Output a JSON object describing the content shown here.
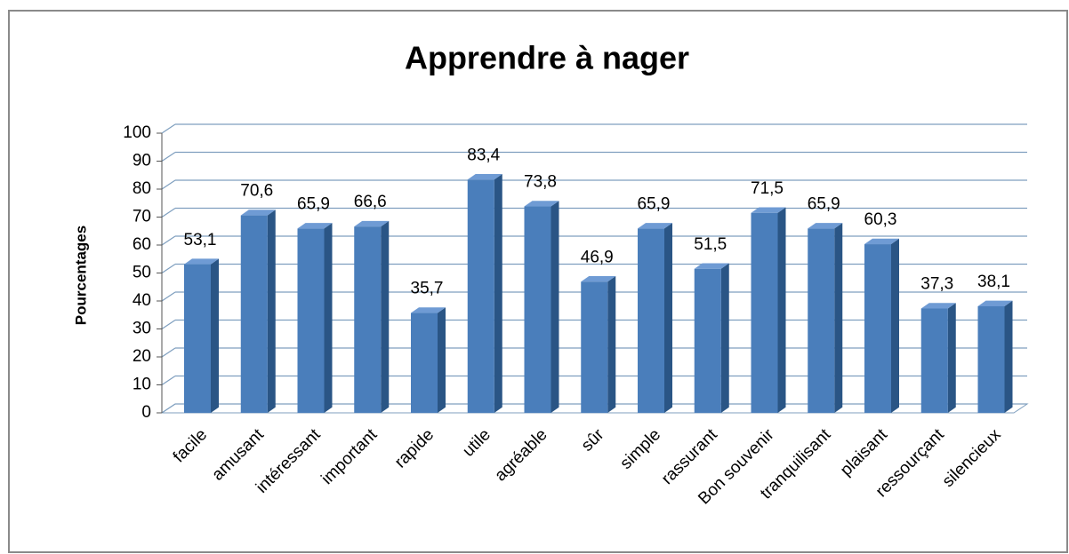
{
  "chart_data": {
    "type": "bar",
    "title": "Apprendre à nager",
    "y_label": "Pourcentages",
    "categories": [
      "facile",
      "amusant",
      "intéressant",
      "important",
      "rapide",
      "utile",
      "agréable",
      "sûr",
      "simple",
      "rassurant",
      "Bon souvenir",
      "tranquilisant",
      "plaisant",
      "ressourçant",
      "silencieux"
    ],
    "values": [
      53.1,
      70.6,
      65.9,
      66.6,
      35.7,
      83.4,
      73.8,
      46.9,
      65.9,
      51.5,
      71.5,
      65.9,
      60.3,
      37.3,
      38.1
    ],
    "value_labels": [
      "53,1",
      "70,6",
      "65,9",
      "66,6",
      "35,7",
      "83,4",
      "73,8",
      "46,9",
      "65,9",
      "51,5",
      "71,5",
      "65,9",
      "60,3",
      "37,3",
      "38,1"
    ],
    "color": "#4a7ebb",
    "ylim": [
      0,
      100
    ],
    "yticks": [
      0,
      10,
      20,
      30,
      40,
      50,
      60,
      70,
      80,
      90,
      100
    ],
    "grid": true
  }
}
